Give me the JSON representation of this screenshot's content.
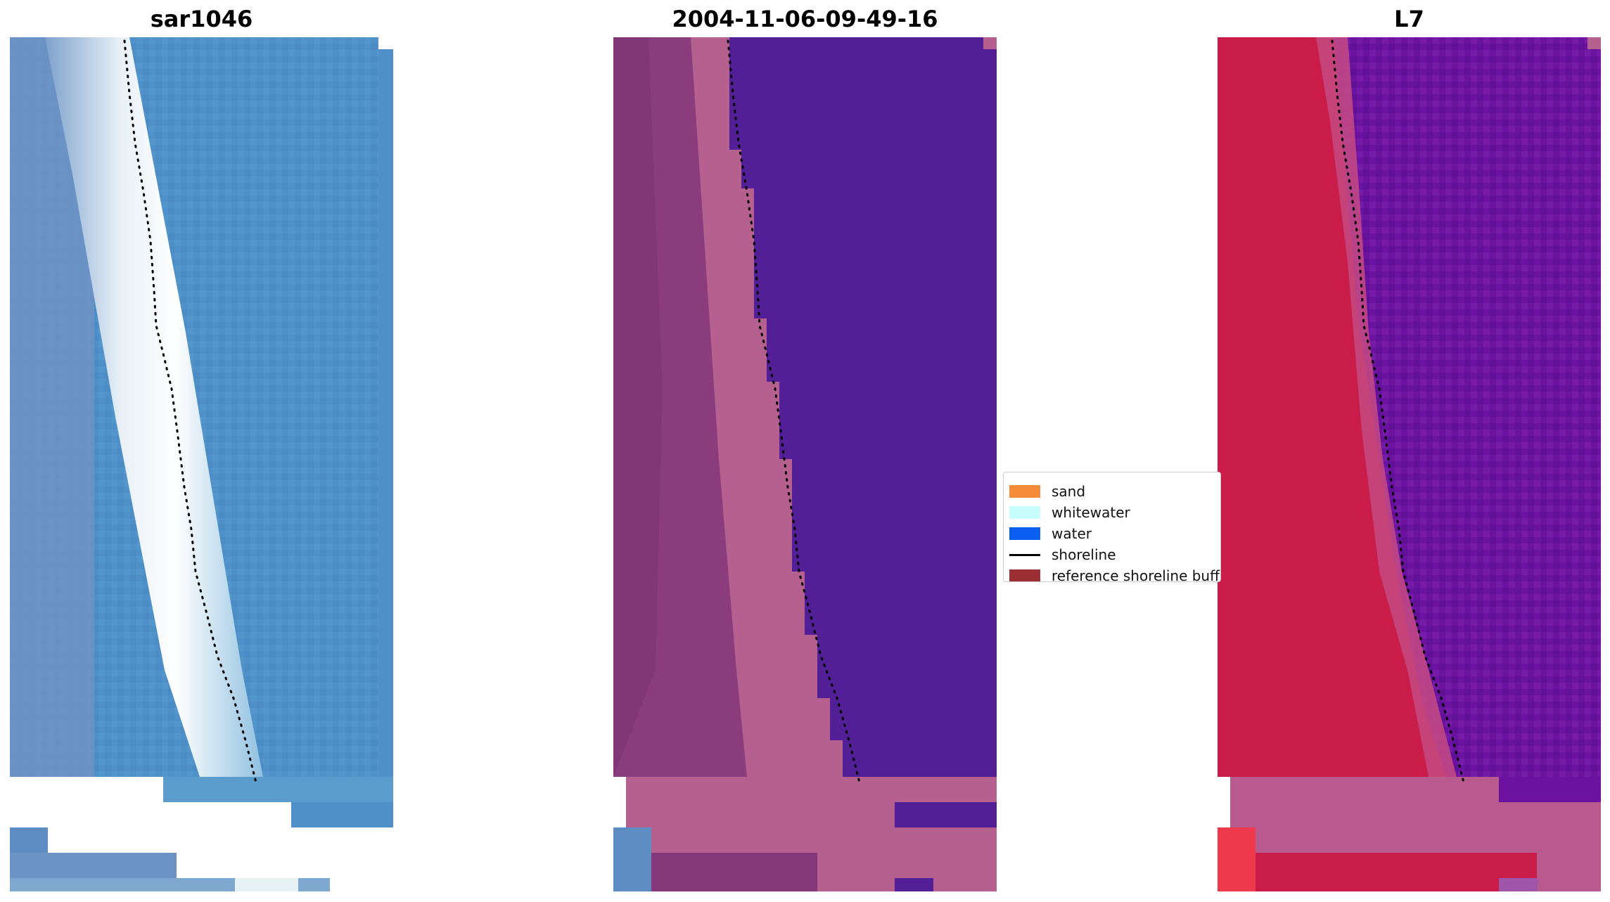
{
  "panels": [
    {
      "id": "sar",
      "title": "sar1046"
    },
    {
      "id": "classified",
      "title": "2004-11-06-09-49-16"
    },
    {
      "id": "sensor",
      "title": "L7"
    }
  ],
  "legend": {
    "items": [
      {
        "label": "sand",
        "color": "#f58c3a",
        "kind": "patch"
      },
      {
        "label": "whitewater",
        "color": "#c8fdfd",
        "kind": "patch"
      },
      {
        "label": "water",
        "color": "#0a5ff0",
        "kind": "patch"
      },
      {
        "label": "shoreline",
        "color": "#000000",
        "kind": "line"
      },
      {
        "label": "reference shoreline buffer",
        "color": "#9b2f33",
        "kind": "patch"
      }
    ]
  },
  "colors": {
    "sar_water": "#4d8fc8",
    "sar_foam": "#f2f7fb",
    "class_water": "#531f96",
    "class_land": "#b5608f",
    "class_land_dark": "#86397a",
    "l7_land": "#c91c48",
    "l7_water": "#6b13a0",
    "l7_buffer": "#b95a8f"
  }
}
